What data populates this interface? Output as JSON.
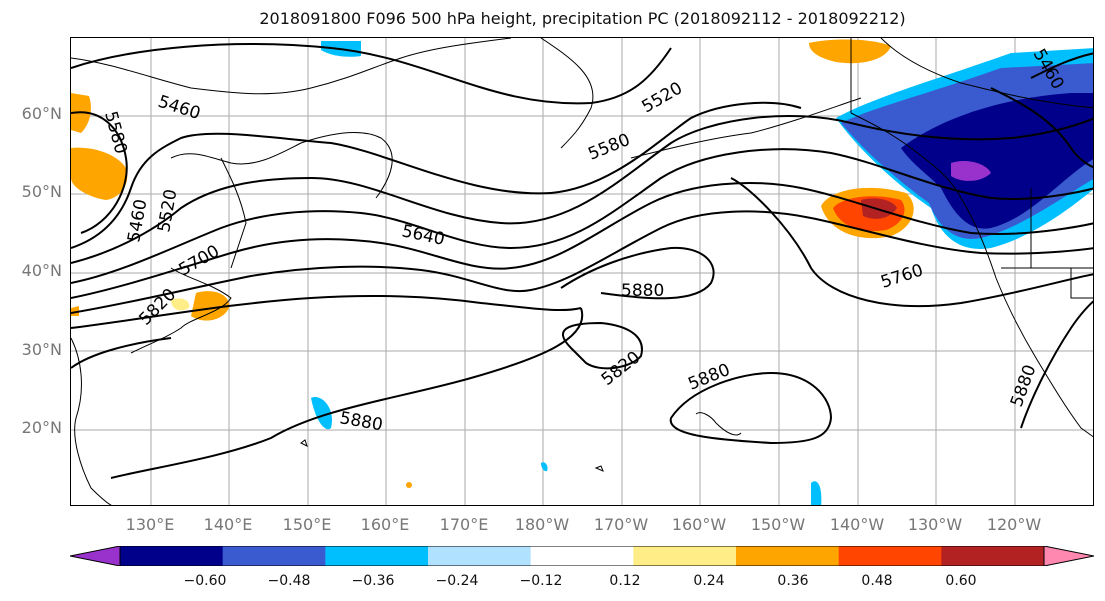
{
  "title": "2018091800 F096 500 hPa height, precipitation PC (2018092112 - 2018092212)",
  "lat_labels": [
    "60°N",
    "50°N",
    "40°N",
    "30°N",
    "20°N"
  ],
  "lon_labels": [
    "130°E",
    "140°E",
    "150°E",
    "160°E",
    "170°E",
    "180°W",
    "170°W",
    "160°W",
    "150°W",
    "140°W",
    "130°W",
    "120°W"
  ],
  "contour_labels": [
    "5460",
    "5580",
    "5460",
    "5520",
    "5700",
    "5820",
    "5580",
    "5520",
    "5640",
    "5760",
    "5880",
    "5820",
    "5880",
    "5880",
    "5880",
    "5460"
  ],
  "colorbar": {
    "colors": [
      "#9932cc",
      "#00008b",
      "#3a5bcf",
      "#00bfff",
      "#b0e2ff",
      "#ffffff",
      "#ffee88",
      "#ffa500",
      "#ff4500",
      "#b22222",
      "#ff88b0"
    ],
    "tick_labels": [
      "−0.60",
      "−0.48",
      "−0.36",
      "−0.24",
      "−0.12",
      "0.12",
      "0.24",
      "0.36",
      "0.48",
      "0.60"
    ]
  },
  "colors": {
    "contour": "#000000",
    "grid": "#aaaaaa",
    "axis_label": "#777777"
  }
}
